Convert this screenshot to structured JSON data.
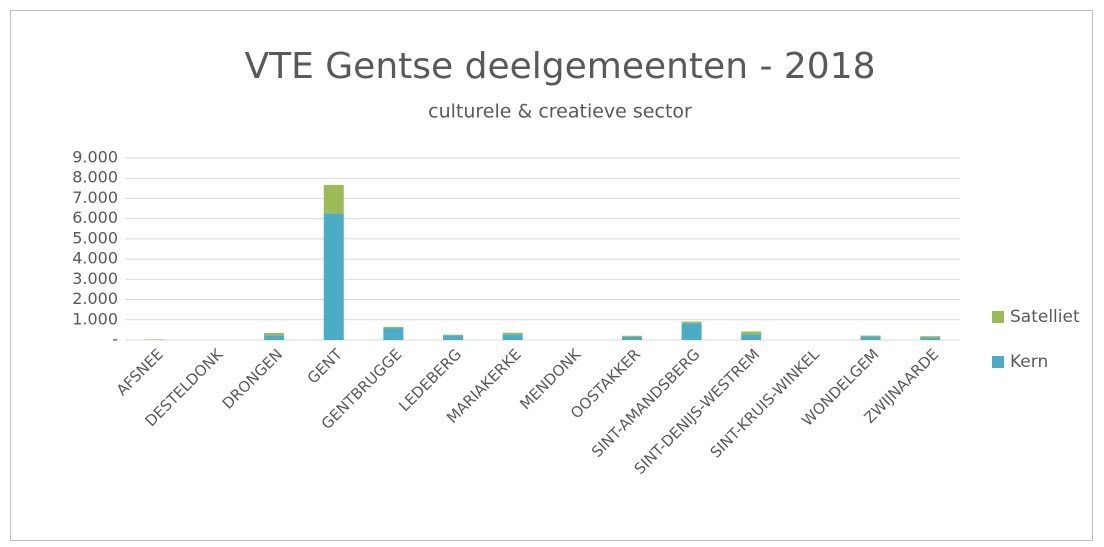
{
  "chart_data": {
    "type": "stacked_bar",
    "title": "VTE Gentse deelgemeenten - 2018",
    "subtitle": "culturele & creatieve sector",
    "categories": [
      "AFSNEE",
      "DESTELDONK",
      "DRONGEN",
      "GENT",
      "GENTBRUGGE",
      "LEDEBERG",
      "MARIAKERKE",
      "MENDONK",
      "OOSTAKKER",
      "SINT-AMANDSBERG",
      "SINT-DENIJS-WESTREM",
      "SINT-KRUIS-WINKEL",
      "WONDELGEM",
      "ZWIJNAARDE"
    ],
    "series": [
      {
        "name": "Kern",
        "color": "#4bacc6",
        "values": [
          10,
          0,
          220,
          6250,
          590,
          220,
          280,
          0,
          150,
          830,
          270,
          0,
          170,
          120
        ]
      },
      {
        "name": "Satelliet",
        "color": "#9bbb59",
        "values": [
          20,
          0,
          130,
          1420,
          60,
          40,
          80,
          0,
          60,
          80,
          150,
          0,
          50,
          70
        ]
      }
    ],
    "ylim": [
      0,
      9000
    ],
    "yticks": [
      {
        "value": 0,
        "label": "-"
      },
      {
        "value": 1000,
        "label": "1.000"
      },
      {
        "value": 2000,
        "label": "2.000"
      },
      {
        "value": 3000,
        "label": "3.000"
      },
      {
        "value": 4000,
        "label": "4.000"
      },
      {
        "value": 5000,
        "label": "5.000"
      },
      {
        "value": 6000,
        "label": "6.000"
      },
      {
        "value": 7000,
        "label": "7.000"
      },
      {
        "value": 8000,
        "label": "8.000"
      },
      {
        "value": 9000,
        "label": "9.000"
      }
    ],
    "grid": true,
    "legend": "right"
  }
}
